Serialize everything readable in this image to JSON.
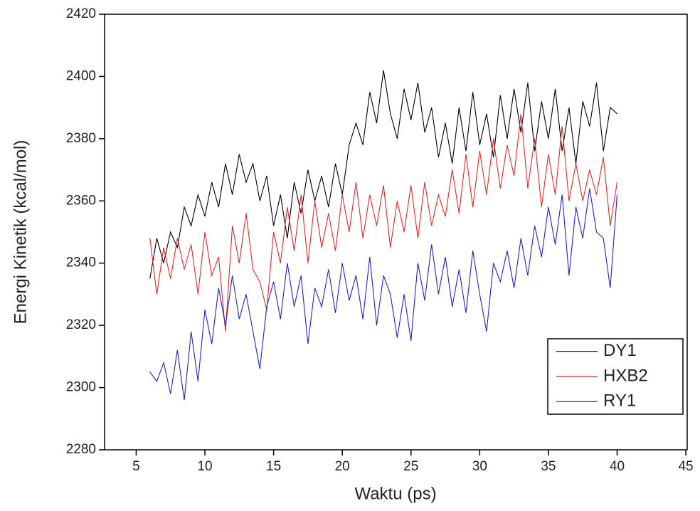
{
  "chart_data": {
    "type": "line",
    "x_label": "Waktu (ps)",
    "y_label": "Energi Kinetik (kcal/mol)",
    "x": [
      6,
      6.5,
      7,
      7.5,
      8,
      8.5,
      9,
      9.5,
      10,
      10.5,
      11,
      11.5,
      12,
      12.5,
      13,
      13.5,
      14,
      14.5,
      15,
      15.5,
      16,
      16.5,
      17,
      17.5,
      18,
      18.5,
      19,
      19.5,
      20,
      20.5,
      21,
      21.5,
      22,
      22.5,
      23,
      23.5,
      24,
      24.5,
      25,
      25.5,
      26,
      26.5,
      27,
      27.5,
      28,
      28.5,
      29,
      29.5,
      30,
      30.5,
      31,
      31.5,
      32,
      32.5,
      33,
      33.5,
      34,
      34.5,
      35,
      35.5,
      36,
      36.5,
      37,
      37.5,
      38,
      38.5,
      39,
      39.5,
      40
    ],
    "series": [
      {
        "name": "DY1",
        "color": "#000000",
        "values": [
          2335,
          2348,
          2340,
          2350,
          2345,
          2358,
          2352,
          2362,
          2355,
          2366,
          2358,
          2372,
          2362,
          2375,
          2366,
          2372,
          2360,
          2368,
          2352,
          2362,
          2348,
          2366,
          2356,
          2370,
          2360,
          2368,
          2358,
          2372,
          2362,
          2378,
          2385,
          2378,
          2395,
          2385,
          2402,
          2388,
          2380,
          2396,
          2386,
          2398,
          2382,
          2390,
          2374,
          2385,
          2372,
          2390,
          2376,
          2395,
          2378,
          2388,
          2374,
          2394,
          2380,
          2396,
          2382,
          2398,
          2376,
          2392,
          2380,
          2396,
          2376,
          2390,
          2372,
          2392,
          2384,
          2398,
          2376,
          2390,
          2388
        ]
      },
      {
        "name": "HXB2",
        "color": "#d42a2a",
        "values": [
          2348,
          2330,
          2345,
          2335,
          2348,
          2338,
          2346,
          2330,
          2350,
          2336,
          2342,
          2318,
          2352,
          2340,
          2356,
          2338,
          2334,
          2325,
          2350,
          2340,
          2358,
          2344,
          2362,
          2340,
          2360,
          2345,
          2356,
          2344,
          2362,
          2350,
          2366,
          2348,
          2362,
          2352,
          2365,
          2345,
          2360,
          2350,
          2365,
          2348,
          2366,
          2352,
          2362,
          2355,
          2370,
          2356,
          2375,
          2358,
          2376,
          2362,
          2380,
          2364,
          2378,
          2368,
          2388,
          2364,
          2380,
          2358,
          2375,
          2362,
          2384,
          2360,
          2372,
          2360,
          2370,
          2362,
          2374,
          2352,
          2366
        ]
      },
      {
        "name": "RY1",
        "color": "#2323b8",
        "values": [
          2305,
          2302,
          2308,
          2298,
          2312,
          2296,
          2318,
          2302,
          2325,
          2314,
          2332,
          2320,
          2336,
          2322,
          2330,
          2318,
          2306,
          2326,
          2334,
          2322,
          2340,
          2326,
          2336,
          2314,
          2332,
          2326,
          2338,
          2324,
          2340,
          2328,
          2336,
          2322,
          2342,
          2320,
          2336,
          2330,
          2316,
          2330,
          2315,
          2340,
          2328,
          2346,
          2330,
          2342,
          2326,
          2338,
          2324,
          2344,
          2330,
          2318,
          2340,
          2334,
          2344,
          2332,
          2348,
          2336,
          2352,
          2342,
          2358,
          2346,
          2362,
          2336,
          2358,
          2348,
          2364,
          2350,
          2348,
          2332,
          2362
        ]
      }
    ],
    "xlim": [
      2.7,
      45.1
    ],
    "xticks": [
      5,
      10,
      15,
      20,
      25,
      30,
      35,
      40,
      45
    ],
    "ylim": [
      2280,
      2420
    ],
    "yticks": [
      2280,
      2300,
      2320,
      2340,
      2360,
      2380,
      2400,
      2420
    ],
    "legend": "lower right"
  }
}
